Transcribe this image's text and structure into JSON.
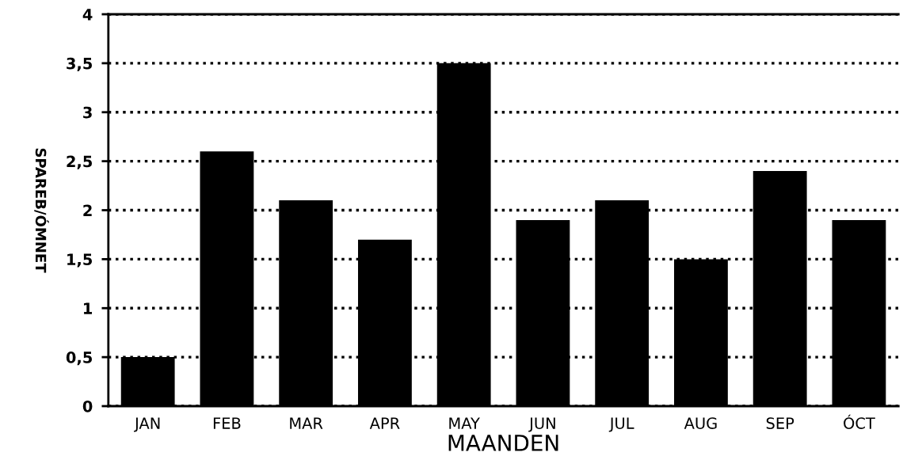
{
  "chart_data": {
    "type": "bar",
    "categories": [
      "JAN",
      "FEB",
      "MAR",
      "APR",
      "MAY",
      "JUN",
      "JUL",
      "AUG",
      "SEP",
      "ÓCT"
    ],
    "values": [
      0.5,
      2.6,
      2.1,
      1.7,
      3.5,
      1.9,
      2.1,
      1.5,
      2.4,
      1.9
    ],
    "color": "#000000",
    "xlabel": "MAANDEN",
    "ylabel": "SPAREB/ÓMNET",
    "ylim": [
      0,
      4
    ],
    "yticks": [
      0,
      {
        "value": 0.5,
        "label": "0,5"
      },
      1,
      {
        "value": 1.5,
        "label": "1,5"
      },
      2,
      {
        "value": 2.5,
        "label": "2,5"
      },
      3,
      {
        "value": 3.5,
        "label": "3,5"
      },
      4
    ],
    "grid": "y",
    "line_style": "dotted"
  }
}
